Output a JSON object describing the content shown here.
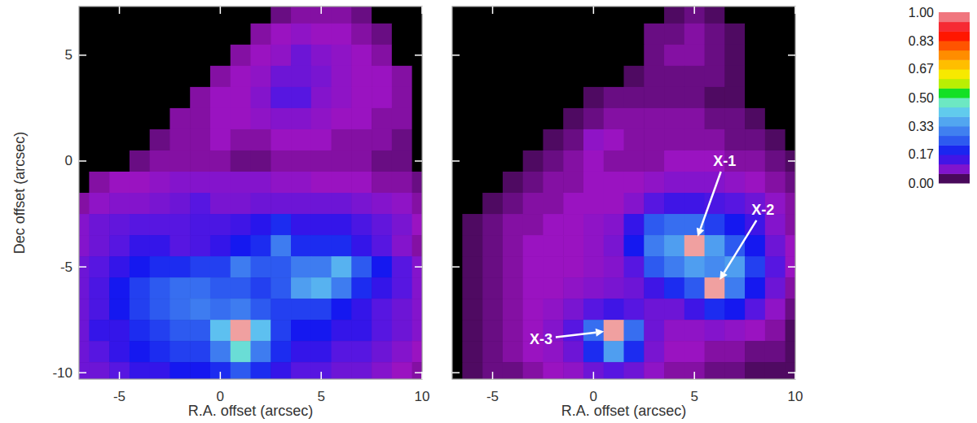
{
  "chart_data": [
    {
      "type": "heatmap",
      "xlabel": "R.A. offset (arcsec)",
      "ylabel": "Dec offset (arcsec)",
      "xlim": [
        -7,
        10
      ],
      "ylim": [
        -10.3,
        7.3
      ],
      "xticks": [
        -5,
        0,
        5,
        10
      ],
      "yticks": [
        -10,
        -5,
        0,
        5
      ],
      "x": [
        -7,
        -6,
        -5,
        -4,
        -3,
        -2,
        -1,
        0,
        1,
        2,
        3,
        4,
        5,
        6,
        7,
        8,
        9,
        10
      ],
      "y": [
        7,
        6,
        5,
        4,
        3,
        2,
        1,
        0,
        -1,
        -2,
        -3,
        -4,
        -5,
        -6,
        -7,
        -8,
        -9,
        -10
      ],
      "cells": [
        [
          0,
          0,
          0,
          0,
          0,
          0,
          0,
          0,
          0,
          0,
          0.04,
          0.05,
          0.05,
          0.05,
          0.04,
          0,
          0,
          0
        ],
        [
          0,
          0,
          0,
          0,
          0,
          0,
          0,
          0,
          0,
          0.05,
          0.06,
          0.07,
          0.06,
          0.06,
          0.05,
          0.04,
          0,
          0
        ],
        [
          0,
          0,
          0,
          0,
          0,
          0,
          0,
          0,
          0.05,
          0.06,
          0.07,
          0.1,
          0.08,
          0.07,
          0.06,
          0.05,
          0,
          0
        ],
        [
          0,
          0,
          0,
          0,
          0,
          0,
          0,
          0.05,
          0.06,
          0.07,
          0.1,
          0.1,
          0.09,
          0.07,
          0.06,
          0.06,
          0.05,
          0
        ],
        [
          0,
          0,
          0,
          0,
          0,
          0,
          0.05,
          0.06,
          0.06,
          0.08,
          0.12,
          0.12,
          0.08,
          0.07,
          0.06,
          0.06,
          0.05,
          0
        ],
        [
          0,
          0,
          0,
          0,
          0,
          0.05,
          0.05,
          0.06,
          0.06,
          0.07,
          0.08,
          0.08,
          0.07,
          0.06,
          0.06,
          0.05,
          0.05,
          0
        ],
        [
          0,
          0,
          0,
          0,
          0.04,
          0.05,
          0.05,
          0.06,
          0.05,
          0.05,
          0.06,
          0.06,
          0.06,
          0.05,
          0.05,
          0.05,
          0.04,
          0
        ],
        [
          0,
          0,
          0,
          0.04,
          0.05,
          0.05,
          0.05,
          0.05,
          0.04,
          0.04,
          0.05,
          0.05,
          0.05,
          0.05,
          0.05,
          0.04,
          0.04,
          0
        ],
        [
          0,
          0.05,
          0.06,
          0.06,
          0.07,
          0.08,
          0.08,
          0.08,
          0.08,
          0.08,
          0.07,
          0.07,
          0.06,
          0.06,
          0.06,
          0.05,
          0.05,
          0.04
        ],
        [
          0.05,
          0.07,
          0.08,
          0.08,
          0.09,
          0.1,
          0.12,
          0.09,
          0.09,
          0.1,
          0.1,
          0.1,
          0.1,
          0.1,
          0.09,
          0.08,
          0.07,
          0.05
        ],
        [
          0.08,
          0.1,
          0.11,
          0.12,
          0.12,
          0.12,
          0.13,
          0.13,
          0.14,
          0.16,
          0.2,
          0.15,
          0.15,
          0.15,
          0.13,
          0.11,
          0.09,
          0.06
        ],
        [
          0.08,
          0.1,
          0.12,
          0.15,
          0.15,
          0.12,
          0.13,
          0.15,
          0.18,
          0.2,
          0.3,
          0.2,
          0.2,
          0.2,
          0.15,
          0.12,
          0.08,
          0.05
        ],
        [
          0.1,
          0.12,
          0.15,
          0.18,
          0.2,
          0.2,
          0.22,
          0.22,
          0.3,
          0.25,
          0.25,
          0.3,
          0.3,
          0.38,
          0.25,
          0.18,
          0.12,
          0.08
        ],
        [
          0.1,
          0.13,
          0.18,
          0.22,
          0.25,
          0.28,
          0.28,
          0.25,
          0.25,
          0.22,
          0.25,
          0.35,
          0.38,
          0.3,
          0.2,
          0.15,
          0.12,
          0.08
        ],
        [
          0.1,
          0.13,
          0.18,
          0.22,
          0.25,
          0.28,
          0.3,
          0.28,
          0.3,
          0.25,
          0.22,
          0.22,
          0.22,
          0.18,
          0.15,
          0.12,
          0.1,
          0.08
        ],
        [
          0.1,
          0.15,
          0.15,
          0.2,
          0.22,
          0.25,
          0.25,
          0.4,
          1,
          0.4,
          0.22,
          0.18,
          0.18,
          0.15,
          0.15,
          0.12,
          0.1,
          0.08
        ],
        [
          0.1,
          0.12,
          0.15,
          0.18,
          0.2,
          0.22,
          0.22,
          0.3,
          0.45,
          0.3,
          0.2,
          0.15,
          0.15,
          0.12,
          0.12,
          0.1,
          0.08,
          0.06
        ],
        [
          0.1,
          0.1,
          0.12,
          0.15,
          0.15,
          0.18,
          0.18,
          0.2,
          0.25,
          0.2,
          0.15,
          0.12,
          0.12,
          0.1,
          0.1,
          0.08,
          0.06,
          0.05
        ]
      ]
    },
    {
      "type": "heatmap",
      "xlabel": "R.A. offset (arcsec)",
      "tick_labels": "x",
      "xlim": [
        -7,
        10
      ],
      "ylim": [
        -10.3,
        7.3
      ],
      "xticks": [
        -5,
        0,
        5,
        10
      ],
      "yticks": [
        -10,
        -5,
        0,
        5
      ],
      "x": [
        -7,
        -6,
        -5,
        -4,
        -3,
        -2,
        -1,
        0,
        1,
        2,
        3,
        4,
        5,
        6,
        7,
        8,
        9,
        10
      ],
      "y": [
        7,
        6,
        5,
        4,
        3,
        2,
        1,
        0,
        -1,
        -2,
        -3,
        -4,
        -5,
        -6,
        -7,
        -8,
        -9,
        -10
      ],
      "cells": [
        [
          0,
          0,
          0,
          0,
          0,
          0,
          0,
          0,
          0,
          0,
          0,
          0.03,
          0.04,
          0.03,
          0,
          0,
          0,
          0
        ],
        [
          0,
          0,
          0,
          0,
          0,
          0,
          0,
          0,
          0,
          0,
          0.04,
          0.04,
          0.05,
          0.04,
          0.03,
          0,
          0,
          0
        ],
        [
          0,
          0,
          0,
          0,
          0,
          0,
          0,
          0,
          0,
          0,
          0.04,
          0.05,
          0.05,
          0.04,
          0.03,
          0,
          0,
          0
        ],
        [
          0,
          0,
          0,
          0,
          0,
          0,
          0,
          0,
          0,
          0.03,
          0.04,
          0.04,
          0.04,
          0.04,
          0.03,
          0,
          0,
          0
        ],
        [
          0,
          0,
          0,
          0,
          0,
          0,
          0,
          0.03,
          0.04,
          0.04,
          0.04,
          0.04,
          0.04,
          0.03,
          0.03,
          0,
          0,
          0
        ],
        [
          0,
          0,
          0,
          0,
          0,
          0,
          0.03,
          0.04,
          0.05,
          0.05,
          0.05,
          0.05,
          0.05,
          0.04,
          0.04,
          0.03,
          0,
          0
        ],
        [
          0,
          0,
          0,
          0,
          0,
          0.03,
          0.04,
          0.07,
          0.06,
          0.05,
          0.05,
          0.05,
          0.05,
          0.05,
          0.04,
          0.04,
          0.03,
          0
        ],
        [
          0,
          0,
          0,
          0,
          0.03,
          0.04,
          0.05,
          0.06,
          0.05,
          0.05,
          0.05,
          0.06,
          0.06,
          0.06,
          0.05,
          0.05,
          0.04,
          0.03
        ],
        [
          0,
          0,
          0,
          0.03,
          0.04,
          0.05,
          0.05,
          0.06,
          0.06,
          0.06,
          0.07,
          0.08,
          0.08,
          0.08,
          0.07,
          0.06,
          0.05,
          0.04
        ],
        [
          0,
          0,
          0.03,
          0.04,
          0.05,
          0.05,
          0.06,
          0.06,
          0.06,
          0.08,
          0.12,
          0.14,
          0.14,
          0.13,
          0.12,
          0.1,
          0.07,
          0.05
        ],
        [
          0,
          0.03,
          0.04,
          0.05,
          0.05,
          0.06,
          0.06,
          0.07,
          0.08,
          0.15,
          0.25,
          0.28,
          0.28,
          0.22,
          0.18,
          0.14,
          0.08,
          0.05
        ],
        [
          0,
          0.03,
          0.04,
          0.05,
          0.06,
          0.06,
          0.06,
          0.07,
          0.09,
          0.18,
          0.3,
          0.35,
          1,
          0.35,
          0.25,
          0.18,
          0.1,
          0.06
        ],
        [
          0,
          0.03,
          0.04,
          0.05,
          0.06,
          0.06,
          0.06,
          0.07,
          0.08,
          0.12,
          0.25,
          0.3,
          0.35,
          0.32,
          0.35,
          0.22,
          0.12,
          0.06
        ],
        [
          0,
          0.03,
          0.04,
          0.05,
          0.06,
          0.06,
          0.07,
          0.08,
          0.09,
          0.1,
          0.14,
          0.2,
          0.25,
          1,
          0.3,
          0.18,
          0.1,
          0.05
        ],
        [
          0,
          0.03,
          0.04,
          0.05,
          0.06,
          0.07,
          0.09,
          0.12,
          0.14,
          0.12,
          0.1,
          0.1,
          0.14,
          0.2,
          0.18,
          0.12,
          0.07,
          0.04
        ],
        [
          0,
          0.03,
          0.04,
          0.05,
          0.06,
          0.08,
          0.12,
          0.28,
          1,
          0.28,
          0.1,
          0.07,
          0.07,
          0.08,
          0.07,
          0.06,
          0.05,
          0.03
        ],
        [
          0,
          0.03,
          0.04,
          0.05,
          0.06,
          0.07,
          0.1,
          0.2,
          0.35,
          0.2,
          0.09,
          0.06,
          0.06,
          0.05,
          0.05,
          0.04,
          0.04,
          0.03
        ],
        [
          0,
          0.03,
          0.04,
          0.04,
          0.05,
          0.06,
          0.07,
          0.1,
          0.12,
          0.1,
          0.07,
          0.05,
          0.05,
          0.04,
          0.04,
          0.03,
          0.03,
          0.03
        ]
      ],
      "annotations": [
        {
          "text": "X-1",
          "x": 5,
          "y": -4,
          "label_x": 6.5,
          "label_y": 0
        },
        {
          "text": "X-2",
          "x": 6,
          "y": -6,
          "label_x": 8.4,
          "label_y": -2.3
        },
        {
          "text": "X-3",
          "x": 1,
          "y": -8,
          "label_x": -2.6,
          "label_y": -8.4
        }
      ],
      "colorbar": {
        "range": [
          0,
          1
        ],
        "ticks": [
          {
            "value": 0,
            "label": "0.00"
          },
          {
            "value": 0.17,
            "label": "0.17"
          },
          {
            "value": 0.33,
            "label": "0.33"
          },
          {
            "value": 0.5,
            "label": "0.50"
          },
          {
            "value": 0.67,
            "label": "0.67"
          },
          {
            "value": 0.83,
            "label": "0.83"
          },
          {
            "value": 1,
            "label": "1.00"
          }
        ]
      }
    }
  ]
}
